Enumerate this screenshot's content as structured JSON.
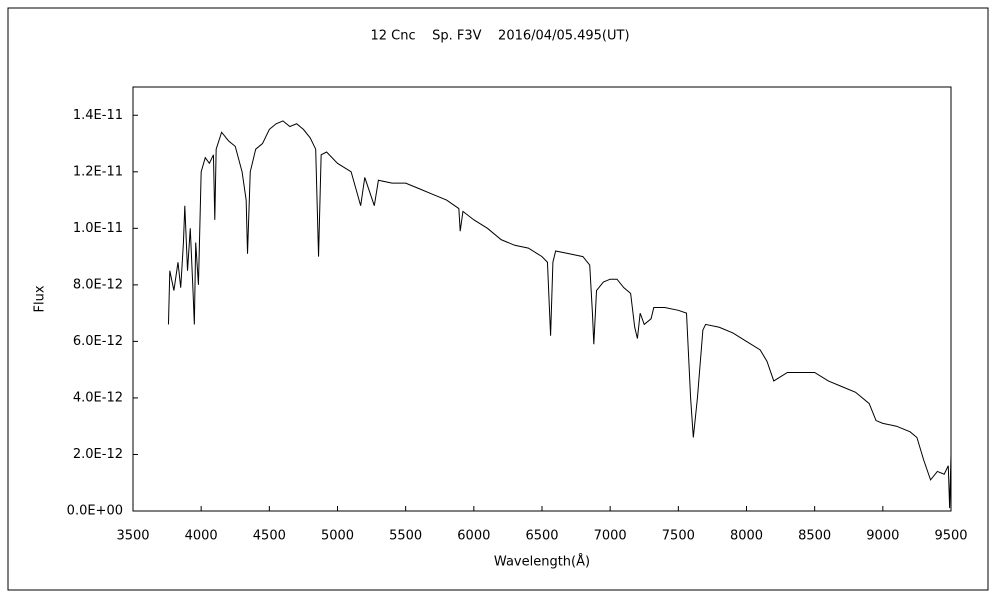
{
  "chart_data": {
    "type": "line",
    "title": "12 Cnc    Sp. F3V    2016/04/05.495(UT)",
    "x_label": "Wavelength(Å)",
    "y_label": "Flux",
    "xlim": [
      3500,
      9500
    ],
    "xticks": [
      3500,
      4000,
      4500,
      5000,
      5500,
      6000,
      6500,
      7000,
      7500,
      8000,
      8500,
      9000,
      9500
    ],
    "ylim": [
      0,
      1.5e-11
    ],
    "yticks": [
      {
        "value": 0,
        "label": "0.0E+00"
      },
      {
        "value": 2e-12,
        "label": "2.0E-12"
      },
      {
        "value": 4e-12,
        "label": "4.0E-12"
      },
      {
        "value": 6e-12,
        "label": "6.0E-12"
      },
      {
        "value": 8e-12,
        "label": "8.0E-12"
      },
      {
        "value": 1e-11,
        "label": "1.0E-11"
      },
      {
        "value": 1.2e-11,
        "label": "1.2E-11"
      },
      {
        "value": 1.4e-11,
        "label": "1.4E-11"
      }
    ],
    "grid": false,
    "series": [
      {
        "color": "#000000",
        "x": [
          3760,
          3770,
          3800,
          3830,
          3850,
          3870,
          3880,
          3900,
          3920,
          3940,
          3950,
          3960,
          3980,
          4000,
          4030,
          4060,
          4090,
          4100,
          4110,
          4150,
          4200,
          4250,
          4300,
          4330,
          4340,
          4360,
          4400,
          4450,
          4500,
          4550,
          4600,
          4650,
          4700,
          4750,
          4800,
          4840,
          4861,
          4880,
          4920,
          5000,
          5100,
          5170,
          5200,
          5270,
          5300,
          5400,
          5500,
          5600,
          5700,
          5800,
          5890,
          5900,
          5920,
          6000,
          6100,
          6200,
          6300,
          6400,
          6500,
          6540,
          6563,
          6580,
          6600,
          6700,
          6800,
          6850,
          6870,
          6880,
          6900,
          6950,
          7000,
          7050,
          7100,
          7150,
          7180,
          7200,
          7220,
          7250,
          7300,
          7320,
          7400,
          7500,
          7560,
          7590,
          7610,
          7640,
          7680,
          7700,
          7800,
          7900,
          8000,
          8100,
          8150,
          8200,
          8300,
          8400,
          8500,
          8600,
          8700,
          8800,
          8900,
          8950,
          9000,
          9100,
          9200,
          9250,
          9300,
          9350,
          9400,
          9450,
          9480,
          9490,
          9500
        ],
        "values": [
          6.6e-12,
          8.5e-12,
          7.8e-12,
          8.8e-12,
          7.9e-12,
          9.5e-12,
          1.08e-11,
          8.5e-12,
          1e-11,
          7.8e-12,
          6.6e-12,
          9.5e-12,
          8e-12,
          1.2e-11,
          1.25e-11,
          1.23e-11,
          1.26e-11,
          1.03e-11,
          1.28e-11,
          1.34e-11,
          1.31e-11,
          1.29e-11,
          1.2e-11,
          1.1e-11,
          9.1e-12,
          1.2e-11,
          1.28e-11,
          1.3e-11,
          1.35e-11,
          1.37e-11,
          1.38e-11,
          1.36e-11,
          1.37e-11,
          1.35e-11,
          1.32e-11,
          1.28e-11,
          9e-12,
          1.26e-11,
          1.27e-11,
          1.23e-11,
          1.2e-11,
          1.08e-11,
          1.18e-11,
          1.08e-11,
          1.17e-11,
          1.16e-11,
          1.16e-11,
          1.14e-11,
          1.12e-11,
          1.1e-11,
          1.07e-11,
          9.9e-12,
          1.06e-11,
          1.03e-11,
          1e-11,
          9.6e-12,
          9.4e-12,
          9.3e-12,
          9e-12,
          8.8e-12,
          6.2e-12,
          8.8e-12,
          9.2e-12,
          9.1e-12,
          9e-12,
          8.7e-12,
          7e-12,
          5.9e-12,
          7.8e-12,
          8.1e-12,
          8.2e-12,
          8.2e-12,
          7.9e-12,
          7.7e-12,
          6.5e-12,
          6.1e-12,
          7e-12,
          6.6e-12,
          6.8e-12,
          7.2e-12,
          7.2e-12,
          7.1e-12,
          7e-12,
          4e-12,
          2.6e-12,
          4e-12,
          6.4e-12,
          6.6e-12,
          6.5e-12,
          6.3e-12,
          6e-12,
          5.7e-12,
          5.3e-12,
          4.6e-12,
          4.9e-12,
          4.9e-12,
          4.9e-12,
          4.6e-12,
          4.4e-12,
          4.2e-12,
          3.8e-12,
          3.2e-12,
          3.1e-12,
          3e-12,
          2.8e-12,
          2.6e-12,
          1.8e-12,
          1.1e-12,
          1.4e-12,
          1.3e-12,
          1.6e-12,
          1e-13,
          2e-12
        ]
      }
    ]
  }
}
